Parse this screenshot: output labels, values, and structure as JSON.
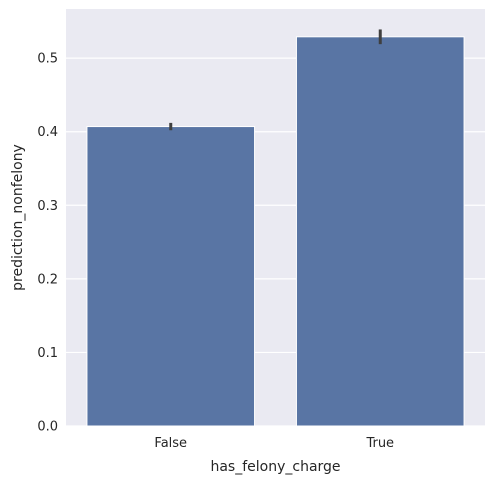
{
  "chart_data": {
    "type": "bar",
    "categories": [
      "False",
      "True"
    ],
    "values": [
      0.407,
      0.529
    ],
    "ci": [
      [
        0.402,
        0.412
      ],
      [
        0.519,
        0.539
      ]
    ],
    "xlabel": "has_felony_charge",
    "ylabel": "prediction_nonfelony",
    "ylim": [
      0,
      0.5668
    ],
    "yticks": [
      "0.0",
      "0.1",
      "0.2",
      "0.3",
      "0.4",
      "0.5"
    ],
    "grid": true,
    "bar_color": "#5975a4",
    "errorbar_color": "#3f3f3f",
    "background_color": "#eaeaf2"
  }
}
